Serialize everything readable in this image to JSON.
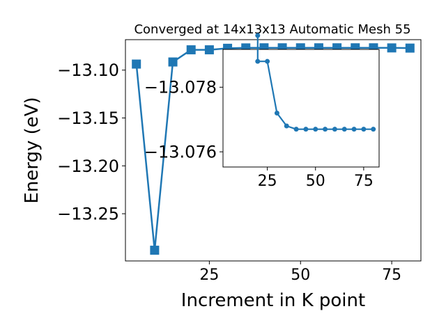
{
  "chart_data": [
    {
      "type": "line",
      "title": "Converged at 14x13x13 Automatic Mesh 55",
      "xlabel": "Increment in K point",
      "ylabel": "Energy (eV)",
      "xlim": [
        2.0,
        83.0
      ],
      "ylim": [
        -13.2993,
        -13.0682
      ],
      "xticks": [
        25,
        50,
        75
      ],
      "yticks": [
        -13.1,
        -13.15,
        -13.2,
        -13.25
      ],
      "xtick_labels": [
        "25",
        "50",
        "75"
      ],
      "ytick_labels": [
        "−13.10",
        "−13.15",
        "−13.20",
        "−13.25"
      ],
      "marker": "square",
      "color": "#1f77b4",
      "grid": false,
      "series": [
        {
          "x": [
            5,
            10,
            15,
            20,
            25,
            30,
            35,
            40,
            45,
            50,
            55,
            60,
            65,
            70,
            75,
            80
          ],
          "values": [
            -13.0937,
            -13.2881,
            -13.0915,
            -13.0788,
            -13.0788,
            -13.0772,
            -13.0768,
            -13.0767,
            -13.0767,
            -13.0767,
            -13.0767,
            -13.0767,
            -13.0767,
            -13.0767,
            -13.0768,
            -13.077
          ]
        }
      ]
    },
    {
      "type": "line",
      "title": "",
      "inset": true,
      "xlim": [
        2.0,
        83.0
      ],
      "ylim": [
        -13.07553,
        -13.07917
      ],
      "xticks": [
        25,
        50,
        75
      ],
      "yticks": [
        -13.078,
        -13.076
      ],
      "xtick_labels": [
        "25",
        "50",
        "75"
      ],
      "ytick_labels": [
        "−13.078",
        "−13.076"
      ],
      "marker": "circle",
      "color": "#1f77b4",
      "grid": false,
      "series": [
        {
          "x": [
            20,
            20,
            25,
            30,
            35,
            40,
            45,
            50,
            55,
            60,
            65,
            70,
            75,
            80
          ],
          "values": [
            -13.0796,
            -13.0788,
            -13.0788,
            -13.0772,
            -13.0768,
            -13.0767,
            -13.0767,
            -13.0767,
            -13.0767,
            -13.0767,
            -13.0767,
            -13.0767,
            -13.0767,
            -13.0767
          ]
        }
      ]
    }
  ]
}
